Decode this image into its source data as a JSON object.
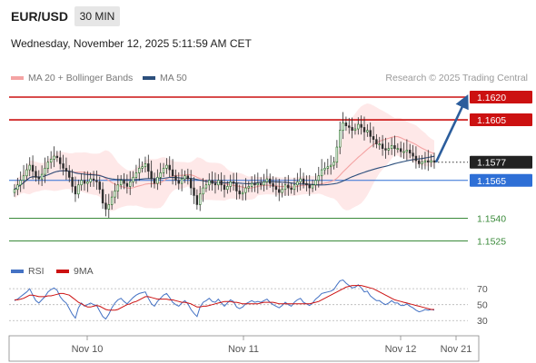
{
  "header": {
    "symbol": "EUR/USD",
    "timeframe": "30 MIN",
    "datetime": "Wednesday, November 12, 2025 5:11:59 AM CET"
  },
  "legend": {
    "ma20": "MA 20 + Bollinger Bands",
    "ma50": "MA 50",
    "credit": "Research © 2025 Trading Central",
    "colors": {
      "ma20": "#f4a3a3",
      "ma50": "#2c4f7c",
      "bands": "#fde0e0"
    }
  },
  "rsi_legend": {
    "rsi": "RSI",
    "ma": "9MA",
    "colors": {
      "rsi": "#4472c4",
      "ma": "#cc1111"
    }
  },
  "chart_data": [
    {
      "type": "line",
      "title": "EUR/USD 30 MIN",
      "subtype": "candlestick",
      "x_ticks": [
        "Nov 10",
        "Nov 11",
        "Nov 12",
        "Nov 21"
      ],
      "ylim": [
        1.1515,
        1.1625
      ],
      "price_levels": [
        {
          "label": "1.1620",
          "value": 1.162,
          "kind": "resistance",
          "color": "#cc1111"
        },
        {
          "label": "1.1605",
          "value": 1.1605,
          "kind": "resistance",
          "color": "#cc1111"
        },
        {
          "label": "1.1577",
          "value": 1.1577,
          "kind": "current",
          "color": "#222222"
        },
        {
          "label": "1.1565",
          "value": 1.1565,
          "kind": "pivot",
          "color": "#2e6fd6"
        },
        {
          "label": "1.1540",
          "value": 1.154,
          "kind": "support",
          "color": "#3a8a3a"
        },
        {
          "label": "1.1525",
          "value": 1.1525,
          "kind": "support",
          "color": "#3a8a3a"
        }
      ],
      "close": [
        1.1559,
        1.1562,
        1.1565,
        1.1568,
        1.1572,
        1.1575,
        1.1571,
        1.1567,
        1.1566,
        1.1569,
        1.1573,
        1.1577,
        1.1579,
        1.1581,
        1.158,
        1.1576,
        1.1573,
        1.1571,
        1.1567,
        1.1561,
        1.1556,
        1.1562,
        1.1565,
        1.1563,
        1.1564,
        1.1566,
        1.1565,
        1.1564,
        1.1559,
        1.155,
        1.1546,
        1.1549,
        1.1554,
        1.1558,
        1.1562,
        1.1565,
        1.1563,
        1.1561,
        1.1564,
        1.1567,
        1.157,
        1.1573,
        1.1574,
        1.1576,
        1.1571,
        1.1566,
        1.1563,
        1.1567,
        1.157,
        1.1573,
        1.1575,
        1.1572,
        1.1568,
        1.1565,
        1.1563,
        1.1566,
        1.1568,
        1.1566,
        1.156,
        1.1555,
        1.1549,
        1.1556,
        1.156,
        1.1562,
        1.1565,
        1.1563,
        1.1562,
        1.1565,
        1.1562,
        1.1559,
        1.1561,
        1.1564,
        1.1563,
        1.1558,
        1.1556,
        1.1557,
        1.156,
        1.1561,
        1.1563,
        1.1562,
        1.1563,
        1.1562,
        1.1564,
        1.1566,
        1.1563,
        1.1561,
        1.1559,
        1.1557,
        1.1559,
        1.1562,
        1.156,
        1.1559,
        1.1562,
        1.1564,
        1.1566,
        1.1563,
        1.1562,
        1.156,
        1.1562,
        1.1565,
        1.1568,
        1.1572,
        1.1573,
        1.1574,
        1.1575,
        1.1577,
        1.1587,
        1.1598,
        1.1603,
        1.1601,
        1.16,
        1.1598,
        1.1599,
        1.1602,
        1.16,
        1.1597,
        1.1598,
        1.1594,
        1.1592,
        1.1589,
        1.1589,
        1.1586,
        1.1585,
        1.1586,
        1.1588,
        1.1586,
        1.1586,
        1.1584,
        1.1584,
        1.1585,
        1.1583,
        1.1581,
        1.1578,
        1.1576,
        1.1577,
        1.1578,
        1.1577,
        1.1578,
        1.1577
      ]
    },
    {
      "type": "line",
      "title": "RSI",
      "ylim": [
        20,
        85
      ],
      "y_ticks": [
        30,
        50,
        70
      ],
      "series": [
        {
          "name": "RSI",
          "values": [
            55,
            57,
            60,
            63,
            66,
            70,
            62,
            55,
            52,
            56,
            60,
            66,
            69,
            71,
            68,
            60,
            55,
            52,
            45,
            38,
            33,
            46,
            52,
            48,
            50,
            52,
            50,
            49,
            42,
            35,
            32,
            38,
            46,
            52,
            56,
            58,
            54,
            51,
            55,
            59,
            62,
            64,
            65,
            66,
            58,
            51,
            48,
            54,
            58,
            62,
            64,
            59,
            53,
            50,
            48,
            52,
            55,
            51,
            44,
            39,
            35,
            47,
            53,
            55,
            58,
            54,
            53,
            57,
            52,
            48,
            52,
            56,
            54,
            47,
            45,
            47,
            51,
            53,
            55,
            53,
            54,
            53,
            55,
            57,
            53,
            50,
            48,
            46,
            49,
            53,
            50,
            48,
            53,
            56,
            58,
            53,
            51,
            49,
            52,
            57,
            60,
            64,
            65,
            66,
            67,
            69,
            75,
            80,
            81,
            77,
            74,
            71,
            72,
            75,
            71,
            66,
            67,
            61,
            58,
            55,
            55,
            52,
            50,
            52,
            55,
            52,
            52,
            49,
            49,
            51,
            48,
            46,
            43,
            41,
            42,
            44,
            43,
            44,
            43
          ]
        },
        {
          "name": "9MA",
          "values": [
            56,
            56,
            57,
            58,
            60,
            62,
            62,
            61,
            60,
            60,
            60,
            61,
            61,
            62,
            63,
            64,
            64,
            63,
            62,
            59,
            56,
            53,
            51,
            49,
            47,
            47,
            48,
            49,
            48,
            46,
            44,
            43,
            43,
            43,
            44,
            46,
            48,
            50,
            51,
            53,
            54,
            56,
            58,
            60,
            60,
            59,
            58,
            57,
            57,
            57,
            57,
            56,
            56,
            55,
            54,
            53,
            53,
            52,
            51,
            49,
            47,
            47,
            48,
            48,
            49,
            50,
            51,
            52,
            53,
            54,
            54,
            54,
            53,
            53,
            52,
            51,
            51,
            51,
            51,
            51,
            51,
            52,
            53,
            53,
            53,
            53,
            52,
            51,
            51,
            51,
            51,
            51,
            51,
            51,
            51,
            51,
            51,
            51,
            52,
            53,
            54,
            56,
            58,
            60,
            62,
            64,
            66,
            68,
            70,
            72,
            73,
            74,
            74,
            74,
            74,
            73,
            72,
            71,
            70,
            68,
            66,
            64,
            62,
            60,
            58,
            56,
            55,
            54,
            53,
            52,
            51,
            50,
            49,
            48,
            47,
            46,
            45,
            44,
            44
          ]
        }
      ]
    }
  ]
}
